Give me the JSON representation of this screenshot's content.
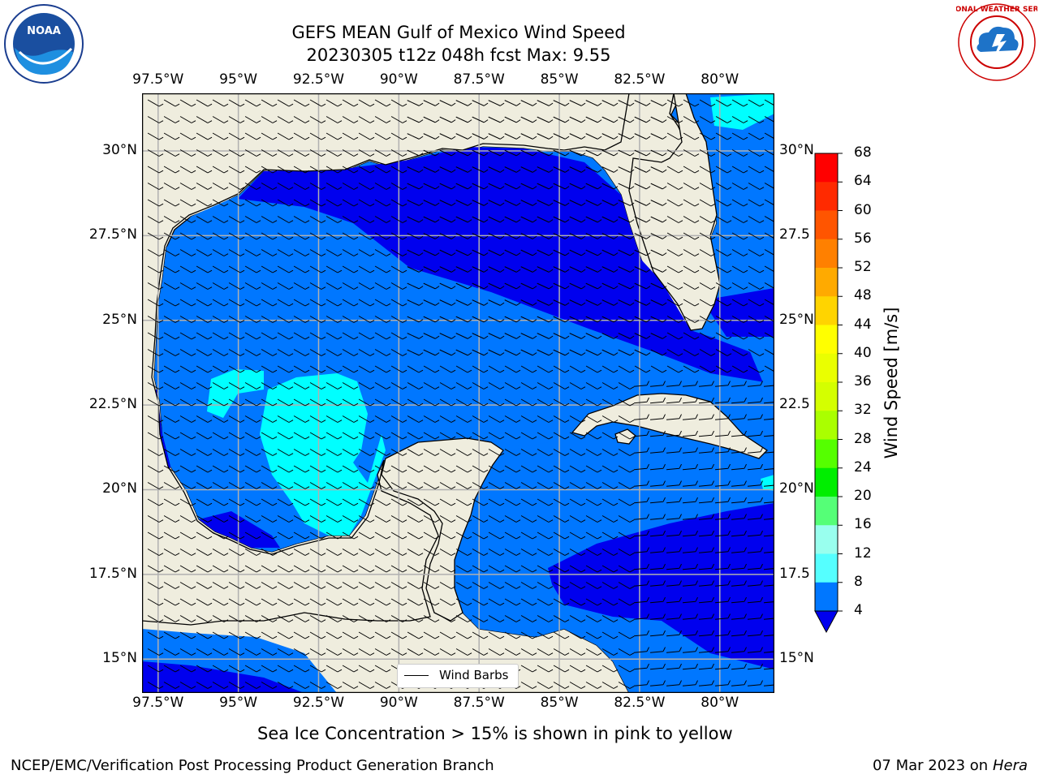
{
  "header": {
    "title_line1": "GEFS MEAN Gulf of Mexico Wind Speed",
    "title_line2": "20230305 t12z 048h fcst   Max: 9.55"
  },
  "logos": {
    "left_text": "NOAA",
    "right_text": "NATIONAL WEATHER SERVICE"
  },
  "map": {
    "lon_labels": [
      "97.5°W",
      "95°W",
      "92.5°W",
      "90°W",
      "87.5°W",
      "85°W",
      "82.5°W",
      "80°W"
    ],
    "lat_labels": [
      "30°N",
      "27.5°N",
      "25°N",
      "22.5°N",
      "20°N",
      "17.5°N",
      "15°N"
    ],
    "lat_labels_right": [
      "30°N",
      "27.5",
      "25°N",
      "22.5",
      "20°N",
      "17.5",
      "15°N"
    ],
    "lon_range": [
      -98.0,
      -78.3
    ],
    "lat_range": [
      14.0,
      31.7
    ],
    "land_color": "#efedde",
    "legend_label": "Wind Barbs"
  },
  "colorbar": {
    "label": "Wind Speed [m/s]",
    "ticks": [
      "68",
      "64",
      "60",
      "56",
      "52",
      "48",
      "44",
      "40",
      "36",
      "32",
      "28",
      "24",
      "20",
      "16",
      "12",
      "8",
      "4"
    ],
    "colors": [
      "#ff0000",
      "#ff2a00",
      "#ff5500",
      "#ff8000",
      "#ffaa00",
      "#ffd400",
      "#ffff00",
      "#eaff00",
      "#d4ff00",
      "#aaff00",
      "#55ff00",
      "#00ee00",
      "#55ff77",
      "#99ffee",
      "#55ffff",
      "#00ffff",
      "#0077ff"
    ],
    "under_color": "#0000ee"
  },
  "footer": {
    "caption": "Sea Ice Concentration > 15% is shown in pink to yellow",
    "org": "NCEP/EMC/Verification Post Processing Product Generation Branch",
    "date": "07 Mar 2023 on",
    "machine": "Hera"
  }
}
